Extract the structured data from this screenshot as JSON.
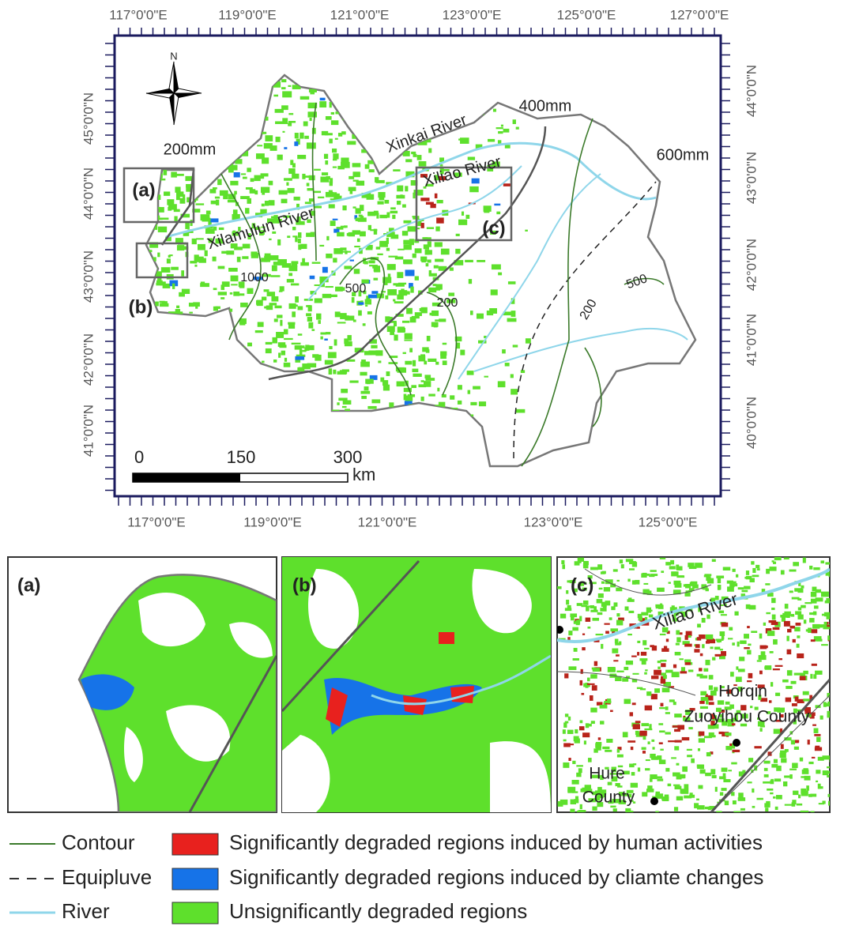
{
  "map": {
    "top_axis_labels": [
      "117°0'0\"E",
      "119°0'0\"E",
      "121°0'0\"E",
      "123°0'0\"E",
      "125°0'0\"E",
      "127°0'0\"E"
    ],
    "bottom_axis_labels": [
      "117°0'0\"E",
      "119°0'0\"E",
      "121°0'0\"E",
      "123°0'0\"E",
      "125°0'0\"E"
    ],
    "left_axis_labels": [
      "45°0'0\"N",
      "44°0'0\"N",
      "43°0'0\"N",
      "42°0'0\"N",
      "41°0'0\"N"
    ],
    "right_axis_labels": [
      "44°0'0\"N",
      "43°0'0\"N",
      "42°0'0\"N",
      "41°0'0\"N",
      "40°0'0\"N"
    ],
    "north_arrow": "N",
    "labels": [
      "200mm",
      "400mm",
      "600mm",
      "Xinkai River",
      "Xiliao River",
      "Xilamulun River",
      "(a)",
      "(b)",
      "(c)",
      "1000",
      "500",
      "200",
      "200",
      "500"
    ],
    "scale_bar": {
      "ticks": [
        "0",
        "150",
        "300"
      ],
      "unit": "km"
    }
  },
  "insets": [
    {
      "label": "(a)"
    },
    {
      "label": "(b)"
    },
    {
      "label": "(c)",
      "river": "Xiliao River",
      "places": [
        "Horqin",
        "Zuoyihou County",
        "Hure",
        "County"
      ]
    }
  ],
  "legend": {
    "lines": [
      "Contour",
      "Equipluve",
      "River"
    ],
    "areas": [
      "Significantly degraded regions induced by human activities",
      "Significantly degraded regions induced by cliamte changes",
      "Unsignificantly degraded regions"
    ]
  }
}
